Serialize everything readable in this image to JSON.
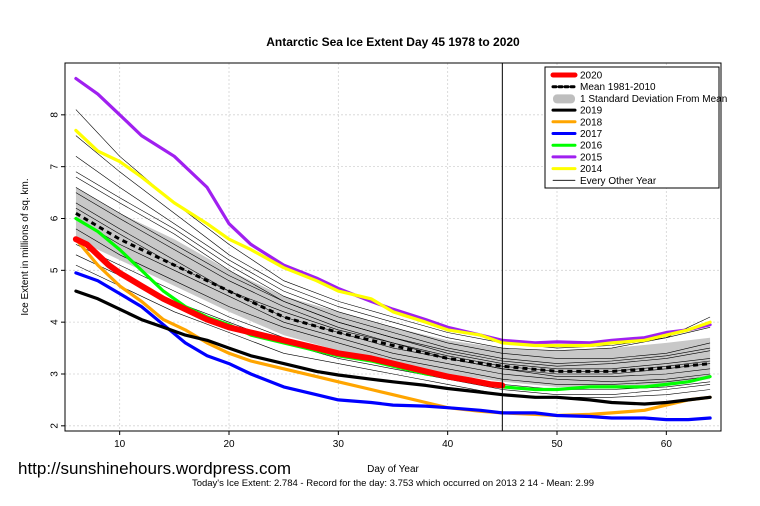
{
  "watermark": "http://sunshinehours.wordpress.com",
  "chart_data": {
    "type": "line",
    "title": "Antarctic Sea Ice Extent Day 45 1978 to 2020",
    "xlabel": "Day of Year",
    "ylabel": "Ice Extent in millions of sq. km.",
    "footer": "Today's Ice Extent: 2.784  - Record for the day: 3.753 which occurred on 2013 2 14  - Mean: 2.99",
    "xlim": [
      5,
      65
    ],
    "ylim": [
      1.9,
      9.0
    ],
    "xticks": [
      10,
      20,
      30,
      40,
      50,
      60
    ],
    "yticks": [
      2,
      3,
      4,
      5,
      6,
      7,
      8
    ],
    "marker_day": 45,
    "grid": true,
    "legend_position": "top-right",
    "legend": [
      {
        "label": "2020",
        "color": "#ff0000",
        "style": "thick"
      },
      {
        "label": "Mean 1981-2010",
        "color": "#000000",
        "style": "dashed"
      },
      {
        "label": "1 Standard Deviation From Mean",
        "color": "#bebebe",
        "style": "band"
      },
      {
        "label": "2019",
        "color": "#000000",
        "style": "solid"
      },
      {
        "label": "2018",
        "color": "#ffa500",
        "style": "solid"
      },
      {
        "label": "2017",
        "color": "#0000ff",
        "style": "solid"
      },
      {
        "label": "2016",
        "color": "#00ff00",
        "style": "solid"
      },
      {
        "label": "2015",
        "color": "#a020f0",
        "style": "solid"
      },
      {
        "label": "2014",
        "color": "#ffff00",
        "style": "solid"
      },
      {
        "label": "Every Other Year",
        "color": "#000000",
        "style": "thin"
      }
    ],
    "band": {
      "x": [
        6,
        10,
        15,
        20,
        25,
        30,
        35,
        40,
        45,
        50,
        55,
        60,
        64
      ],
      "upper": [
        6.6,
        6.1,
        5.6,
        5.0,
        4.5,
        4.2,
        3.9,
        3.65,
        3.5,
        3.45,
        3.5,
        3.6,
        3.7
      ],
      "lower": [
        5.6,
        5.2,
        4.7,
        4.2,
        3.75,
        3.45,
        3.2,
        3.0,
        2.85,
        2.75,
        2.75,
        2.8,
        2.9
      ]
    },
    "mean": {
      "x": [
        6,
        10,
        15,
        20,
        25,
        30,
        35,
        40,
        45,
        50,
        55,
        60,
        64
      ],
      "y": [
        6.1,
        5.6,
        5.1,
        4.6,
        4.1,
        3.8,
        3.55,
        3.3,
        3.15,
        3.05,
        3.05,
        3.12,
        3.2
      ]
    },
    "other_years": [
      {
        "x": [
          6,
          10,
          15,
          20,
          25,
          30,
          35,
          40,
          45,
          50,
          55,
          60,
          64
        ],
        "y": [
          8.1,
          7.2,
          6.3,
          5.5,
          4.8,
          4.4,
          4.1,
          3.8,
          3.6,
          3.5,
          3.55,
          3.7,
          3.9
        ]
      },
      {
        "x": [
          6,
          10,
          15,
          20,
          25,
          30,
          35,
          40,
          45,
          50,
          55,
          60,
          64
        ],
        "y": [
          7.2,
          6.6,
          5.9,
          5.2,
          4.6,
          4.2,
          3.9,
          3.6,
          3.4,
          3.3,
          3.3,
          3.4,
          3.6
        ]
      },
      {
        "x": [
          6,
          10,
          15,
          20,
          25,
          30,
          35,
          40,
          45,
          50,
          55,
          60,
          64
        ],
        "y": [
          6.8,
          6.3,
          5.7,
          5.0,
          4.4,
          4.0,
          3.7,
          3.4,
          3.2,
          3.1,
          3.1,
          3.2,
          3.3
        ]
      },
      {
        "x": [
          6,
          10,
          15,
          20,
          25,
          30,
          35,
          40,
          45,
          50,
          55,
          60,
          64
        ],
        "y": [
          6.5,
          6.0,
          5.4,
          4.8,
          4.3,
          3.9,
          3.6,
          3.3,
          3.1,
          3.0,
          3.0,
          3.1,
          3.2
        ]
      },
      {
        "x": [
          6,
          10,
          15,
          20,
          25,
          30,
          35,
          40,
          45,
          50,
          55,
          60,
          64
        ],
        "y": [
          6.3,
          5.8,
          5.2,
          4.6,
          4.1,
          3.8,
          3.5,
          3.3,
          3.1,
          2.95,
          2.95,
          3.0,
          3.1
        ]
      },
      {
        "x": [
          6,
          10,
          15,
          20,
          25,
          30,
          35,
          40,
          45,
          50,
          55,
          60,
          64
        ],
        "y": [
          6.0,
          5.5,
          5.0,
          4.5,
          4.0,
          3.7,
          3.4,
          3.2,
          3.0,
          2.9,
          2.85,
          2.9,
          3.0
        ]
      },
      {
        "x": [
          6,
          10,
          15,
          20,
          25,
          30,
          35,
          40,
          45,
          50,
          55,
          60,
          64
        ],
        "y": [
          5.8,
          5.3,
          4.8,
          4.3,
          3.9,
          3.6,
          3.3,
          3.1,
          2.9,
          2.8,
          2.8,
          2.85,
          2.95
        ]
      },
      {
        "x": [
          6,
          10,
          15,
          20,
          25,
          30,
          35,
          40,
          45,
          50,
          55,
          60,
          64
        ],
        "y": [
          5.5,
          5.1,
          4.6,
          4.1,
          3.7,
          3.4,
          3.2,
          3.0,
          2.8,
          2.7,
          2.7,
          2.75,
          2.85
        ]
      },
      {
        "x": [
          6,
          10,
          15,
          20,
          25,
          30,
          35,
          40,
          45,
          50,
          55,
          60,
          64
        ],
        "y": [
          5.3,
          4.9,
          4.4,
          4.0,
          3.6,
          3.3,
          3.1,
          2.9,
          2.7,
          2.6,
          2.6,
          2.7,
          2.8
        ]
      },
      {
        "x": [
          6,
          10,
          15,
          20,
          25,
          30,
          35,
          40,
          45,
          50,
          55,
          60,
          64
        ],
        "y": [
          5.1,
          4.7,
          4.2,
          3.8,
          3.4,
          3.2,
          3.0,
          2.8,
          2.6,
          2.55,
          2.55,
          2.6,
          2.7
        ]
      },
      {
        "x": [
          6,
          10,
          15,
          20,
          25,
          30,
          35,
          40,
          45,
          50,
          55,
          60,
          64
        ],
        "y": [
          7.6,
          6.9,
          6.1,
          5.3,
          4.7,
          4.3,
          4.0,
          3.7,
          3.5,
          3.45,
          3.5,
          3.7,
          4.1
        ]
      },
      {
        "x": [
          6,
          10,
          15,
          20,
          25,
          30,
          35,
          40,
          45,
          50,
          55,
          60,
          64
        ],
        "y": [
          6.9,
          6.4,
          5.8,
          5.1,
          4.5,
          4.1,
          3.8,
          3.5,
          3.3,
          3.2,
          3.25,
          3.35,
          3.5
        ]
      },
      {
        "x": [
          6,
          10,
          15,
          20,
          25,
          30,
          35,
          40,
          45,
          50,
          55,
          60,
          64
        ],
        "y": [
          6.6,
          6.1,
          5.5,
          4.9,
          4.4,
          4.0,
          3.7,
          3.45,
          3.25,
          3.15,
          3.2,
          3.3,
          3.45
        ]
      },
      {
        "x": [
          6,
          10,
          15,
          20,
          25,
          30,
          35,
          40,
          45,
          50,
          55,
          60,
          64
        ],
        "y": [
          6.2,
          5.7,
          5.1,
          4.6,
          4.2,
          3.85,
          3.6,
          3.35,
          3.15,
          3.05,
          3.05,
          3.15,
          3.25
        ]
      }
    ],
    "series": [
      {
        "name": "2015",
        "color": "#a020f0",
        "x": [
          6,
          8,
          10,
          12,
          15,
          18,
          20,
          22,
          25,
          28,
          30,
          33,
          35,
          38,
          40,
          43,
          45,
          48,
          50,
          53,
          55,
          58,
          60,
          62,
          64
        ],
        "y": [
          8.7,
          8.4,
          8.0,
          7.6,
          7.2,
          6.6,
          5.9,
          5.5,
          5.1,
          4.85,
          4.65,
          4.4,
          4.25,
          4.05,
          3.9,
          3.75,
          3.65,
          3.6,
          3.62,
          3.6,
          3.65,
          3.7,
          3.8,
          3.85,
          3.95
        ]
      },
      {
        "name": "2014",
        "color": "#ffff00",
        "x": [
          6,
          8,
          10,
          12,
          15,
          18,
          20,
          22,
          25,
          28,
          30,
          33,
          35,
          38,
          40,
          43,
          45,
          48,
          50,
          53,
          55,
          58,
          60,
          62,
          64
        ],
        "y": [
          7.7,
          7.3,
          7.1,
          6.8,
          6.3,
          5.9,
          5.6,
          5.4,
          5.05,
          4.8,
          4.6,
          4.45,
          4.2,
          4.0,
          3.85,
          3.75,
          3.6,
          3.55,
          3.55,
          3.55,
          3.6,
          3.65,
          3.75,
          3.85,
          4.0
        ]
      },
      {
        "name": "2016",
        "color": "#00ff00",
        "x": [
          6,
          8,
          10,
          12,
          14,
          16,
          18,
          20,
          22,
          25,
          28,
          30,
          33,
          35,
          38,
          40,
          43,
          45,
          48,
          50,
          53,
          55,
          58,
          60,
          62,
          64
        ],
        "y": [
          6.0,
          5.75,
          5.4,
          5.0,
          4.6,
          4.3,
          4.1,
          3.95,
          3.75,
          3.6,
          3.45,
          3.35,
          3.25,
          3.15,
          3.0,
          2.95,
          2.85,
          2.75,
          2.7,
          2.7,
          2.75,
          2.75,
          2.75,
          2.8,
          2.85,
          2.95
        ]
      },
      {
        "name": "2018",
        "color": "#ffa500",
        "x": [
          6,
          8,
          10,
          12,
          14,
          16,
          18,
          20,
          22,
          25,
          28,
          30,
          33,
          35,
          38,
          40,
          43,
          45,
          48,
          50,
          53,
          55,
          58,
          60,
          62,
          64
        ],
        "y": [
          5.6,
          5.1,
          4.7,
          4.4,
          4.05,
          3.85,
          3.6,
          3.4,
          3.25,
          3.1,
          2.95,
          2.85,
          2.7,
          2.6,
          2.45,
          2.35,
          2.28,
          2.25,
          2.22,
          2.2,
          2.22,
          2.25,
          2.3,
          2.4,
          2.5,
          2.55
        ]
      },
      {
        "name": "2017",
        "color": "#0000ff",
        "x": [
          6,
          8,
          10,
          12,
          14,
          16,
          18,
          20,
          22,
          25,
          28,
          30,
          33,
          35,
          38,
          40,
          43,
          45,
          48,
          50,
          53,
          55,
          58,
          60,
          62,
          64
        ],
        "y": [
          4.95,
          4.8,
          4.55,
          4.3,
          3.95,
          3.6,
          3.35,
          3.2,
          3.0,
          2.75,
          2.6,
          2.5,
          2.45,
          2.4,
          2.38,
          2.35,
          2.3,
          2.25,
          2.25,
          2.2,
          2.18,
          2.15,
          2.15,
          2.12,
          2.12,
          2.15
        ]
      },
      {
        "name": "2019",
        "color": "#000000",
        "x": [
          6,
          8,
          10,
          12,
          14,
          16,
          18,
          20,
          22,
          25,
          28,
          30,
          33,
          35,
          38,
          40,
          43,
          45,
          48,
          50,
          53,
          55,
          58,
          60,
          62,
          64
        ],
        "y": [
          4.6,
          4.45,
          4.25,
          4.05,
          3.9,
          3.75,
          3.65,
          3.5,
          3.35,
          3.2,
          3.05,
          2.98,
          2.9,
          2.85,
          2.78,
          2.72,
          2.65,
          2.6,
          2.55,
          2.55,
          2.5,
          2.45,
          2.42,
          2.45,
          2.5,
          2.55
        ]
      },
      {
        "name": "2020",
        "color": "#ff0000",
        "x": [
          6,
          7,
          8,
          9,
          10,
          12,
          14,
          16,
          18,
          20,
          22,
          25,
          28,
          30,
          33,
          35,
          38,
          40,
          42,
          44,
          45
        ],
        "y": [
          5.6,
          5.5,
          5.3,
          5.1,
          4.95,
          4.7,
          4.45,
          4.25,
          4.05,
          3.9,
          3.8,
          3.65,
          3.5,
          3.4,
          3.3,
          3.2,
          3.05,
          2.95,
          2.88,
          2.8,
          2.78
        ]
      }
    ]
  }
}
